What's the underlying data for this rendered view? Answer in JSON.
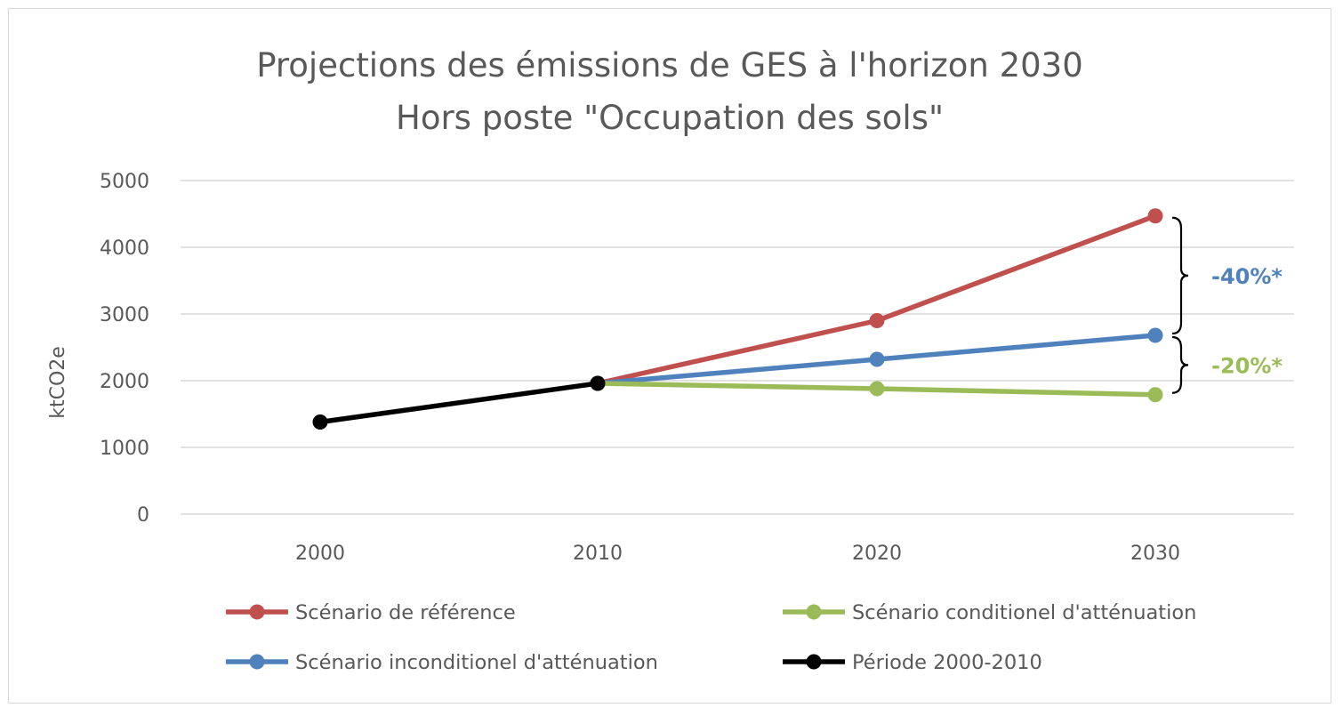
{
  "chart_data": {
    "type": "line",
    "title": "Projections des émissions de GES à l'horizon 2030",
    "subtitle": "Hors poste \"Occupation des sols\"",
    "xlabel": "",
    "ylabel": "ktCO2e",
    "categories": [
      "2000",
      "2010",
      "2020",
      "2030"
    ],
    "ylim": [
      0,
      5000
    ],
    "yticks": [
      0,
      1000,
      2000,
      3000,
      4000,
      5000
    ],
    "grid": true,
    "legend_position": "bottom",
    "series": [
      {
        "name": "Scénario de référence",
        "color": "#c0504d",
        "values": [
          null,
          1960,
          2900,
          4470
        ]
      },
      {
        "name": "Scénario conditionel d'atténuation",
        "color": "#9bbb59",
        "values": [
          null,
          1960,
          1880,
          1790
        ]
      },
      {
        "name": "Scénario inconditionel d'atténuation",
        "color": "#4f81bd",
        "values": [
          null,
          1960,
          2320,
          2680
        ]
      },
      {
        "name": "Période 2000-2010",
        "color": "#000000",
        "values": [
          1380,
          1960,
          null,
          null
        ]
      }
    ],
    "annotations": [
      {
        "text": "-40%*",
        "color": "#4f81bd",
        "from": 4470,
        "to": 2680
      },
      {
        "text": "-20%*",
        "color": "#9bbb59",
        "from": 2680,
        "to": 1790
      }
    ]
  }
}
